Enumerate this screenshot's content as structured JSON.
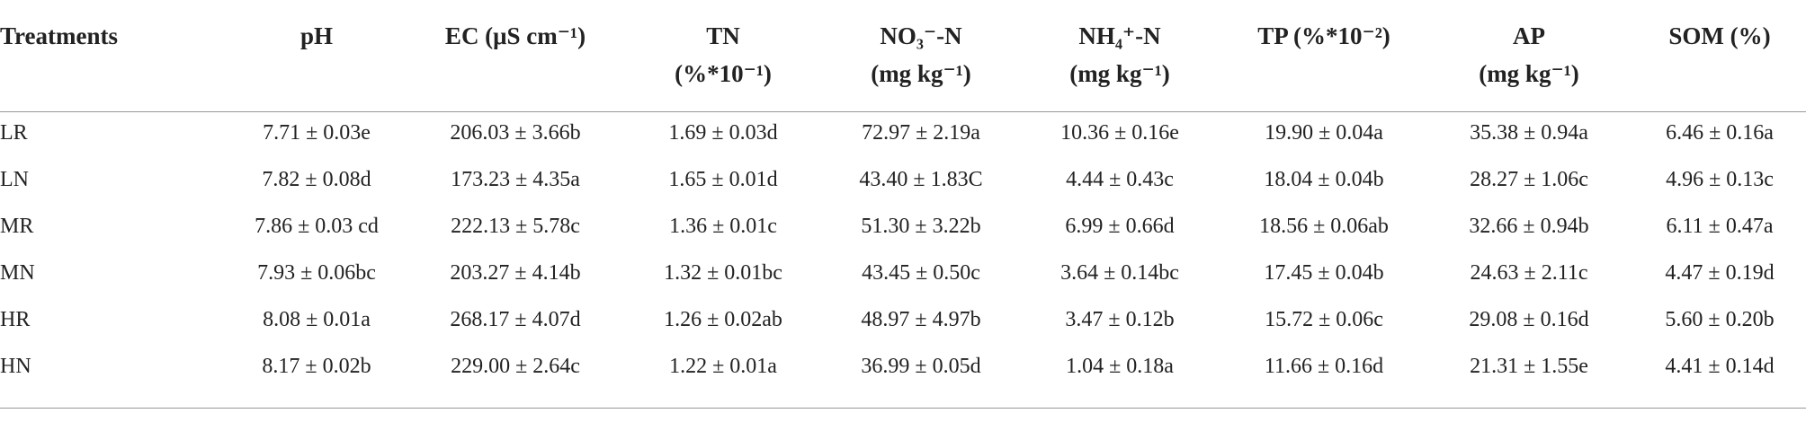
{
  "table": {
    "header": [
      [
        "Treatments"
      ],
      [
        "pH"
      ],
      [
        "EC (μS cm⁻¹)"
      ],
      [
        "TN",
        "(%*10⁻¹)"
      ],
      [
        "NO₃⁻-N",
        "(mg kg⁻¹)"
      ],
      [
        "NH₄⁺-N",
        "(mg kg⁻¹)"
      ],
      [
        "TP (%*10⁻²)"
      ],
      [
        "AP",
        "(mg kg⁻¹)"
      ],
      [
        "SOM (%)"
      ]
    ],
    "rows": [
      [
        "LR",
        "7.71 ± 0.03e",
        "206.03 ± 3.66b",
        "1.69 ± 0.03d",
        "72.97 ± 2.19a",
        "10.36 ± 0.16e",
        "19.90 ± 0.04a",
        "35.38 ± 0.94a",
        "6.46 ± 0.16a"
      ],
      [
        "LN",
        "7.82 ± 0.08d",
        "173.23 ± 4.35a",
        "1.65 ± 0.01d",
        "43.40 ± 1.83C",
        "4.44 ± 0.43c",
        "18.04 ± 0.04b",
        "28.27 ± 1.06c",
        "4.96 ± 0.13c"
      ],
      [
        "MR",
        "7.86 ± 0.03 cd",
        "222.13 ± 5.78c",
        "1.36 ± 0.01c",
        "51.30 ± 3.22b",
        "6.99 ± 0.66d",
        "18.56 ± 0.06ab",
        "32.66 ± 0.94b",
        "6.11 ± 0.47a"
      ],
      [
        "MN",
        "7.93 ± 0.06bc",
        "203.27 ± 4.14b",
        "1.32 ± 0.01bc",
        "43.45 ± 0.50c",
        "3.64 ± 0.14bc",
        "17.45 ± 0.04b",
        "24.63 ± 2.11c",
        "4.47 ± 0.19d"
      ],
      [
        "HR",
        "8.08 ± 0.01a",
        "268.17 ± 4.07d",
        "1.26 ± 0.02ab",
        "48.97 ± 4.97b",
        "3.47 ± 0.12b",
        "15.72 ± 0.06c",
        "29.08 ± 0.16d",
        "5.60 ± 0.20b"
      ],
      [
        "HN",
        "8.17 ± 0.02b",
        "229.00 ± 2.64c",
        "1.22 ± 0.01a",
        "36.99 ± 0.05d",
        "1.04 ± 0.18a",
        "11.66 ± 0.16d",
        "21.31 ± 1.55e",
        "4.41 ± 0.14d"
      ]
    ]
  }
}
